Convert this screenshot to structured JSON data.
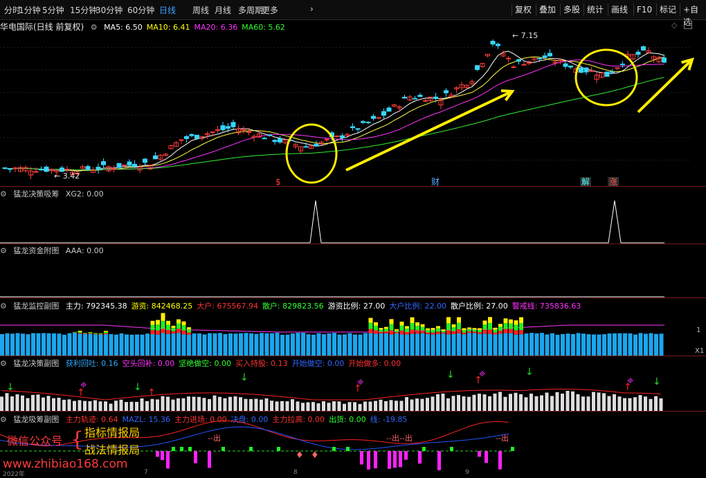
{
  "toolbar": {
    "periods": [
      "分时",
      "1分钟",
      "5分钟",
      "15分钟",
      "30分钟",
      "60分钟",
      "日线",
      "周线",
      "月线",
      "多周期",
      "更多"
    ],
    "active_period": "日线",
    "right_buttons": [
      "复权",
      "叠加",
      "多股",
      "统计",
      "画线",
      "F10",
      "标记",
      "+自选"
    ]
  },
  "main": {
    "title": "华电国际(日线 前复权)",
    "ma": [
      {
        "label": "MA5: 6.50",
        "color": "#ffffff"
      },
      {
        "label": "MA10: 6.41",
        "color": "#ffff00"
      },
      {
        "label": "MA20: 6.36",
        "color": "#ff33ff"
      },
      {
        "label": "MA60: 5.62",
        "color": "#33ff33"
      }
    ],
    "high_label": "7.15",
    "low_label": "3.42",
    "markers": [
      {
        "text": "$",
        "color": "#ff4040"
      },
      {
        "text": "财",
        "color": "#55aaff"
      },
      {
        "text": "解",
        "color": "#55ffff"
      },
      {
        "text": "涨",
        "color": "#ff5555"
      }
    ]
  },
  "panel1": {
    "title": "猛龙决策吸筹",
    "values": [
      {
        "label": "XG2: 0.00",
        "color": "#c8c8c8"
      }
    ]
  },
  "panel2": {
    "title": "猛龙资金附图",
    "values": [
      {
        "label": "AAA: 0.00",
        "color": "#c8c8c8"
      }
    ]
  },
  "panel3": {
    "title": "猛龙监控副图",
    "values": [
      {
        "label": "主力: 792345.38",
        "color": "#ffffff"
      },
      {
        "label": "游资: 842468.25",
        "color": "#ffff00"
      },
      {
        "label": "大户: 675567.94",
        "color": "#ff3333"
      },
      {
        "label": "散户: 829823.56",
        "color": "#33ff33"
      },
      {
        "label": "游资比例: 27.00",
        "color": "#ffffff"
      },
      {
        "label": "大户比例: 22.00",
        "color": "#3366ff"
      },
      {
        "label": "散户比例: 27.00",
        "color": "#ffffff"
      },
      {
        "label": "警戒线: 735836.63",
        "color": "#ff33ff"
      }
    ],
    "axis_label": "1",
    "axis_label2": "X1"
  },
  "panel4": {
    "title": "猛龙决策副图",
    "values": [
      {
        "label": "获利回吐: 0.16",
        "color": "#33aaff"
      },
      {
        "label": "空头回补: 0.00",
        "color": "#ff33ff"
      },
      {
        "label": "坚绝做空: 0.00",
        "color": "#33ff33"
      },
      {
        "label": "买入持股: 0.13",
        "color": "#ff3333"
      },
      {
        "label": "开始做空: 0.00",
        "color": "#3366ff"
      },
      {
        "label": "开始做多: 0.00",
        "color": "#ff3333"
      }
    ]
  },
  "panel5": {
    "title": "猛龙吸筹副图",
    "values": [
      {
        "label": "主力轨迹: 0.64",
        "color": "#ff3333"
      },
      {
        "label": "MAZL: 15.36",
        "color": "#3366ff"
      },
      {
        "label": "主力进场: 0.00",
        "color": "#ff3333"
      },
      {
        "label": "决盘: 0.00",
        "color": "#3366ff"
      },
      {
        "label": "主力拉高: 0.00",
        "color": "#ff3333"
      },
      {
        "label": "出货: 0.00",
        "color": "#33ff33"
      },
      {
        "label": "线: -19.85",
        "color": "#3366ff"
      }
    ],
    "out_labels": [
      "--出",
      "--出--出",
      "--出"
    ]
  },
  "watermark": {
    "left": "微信公众号",
    "brace": "{",
    "right1": "指标情报局",
    "right2": "战法情报局",
    "url": "www.zhibiao168.com"
  },
  "date_axis": [
    "2022年",
    "7",
    "8",
    "9"
  ]
}
